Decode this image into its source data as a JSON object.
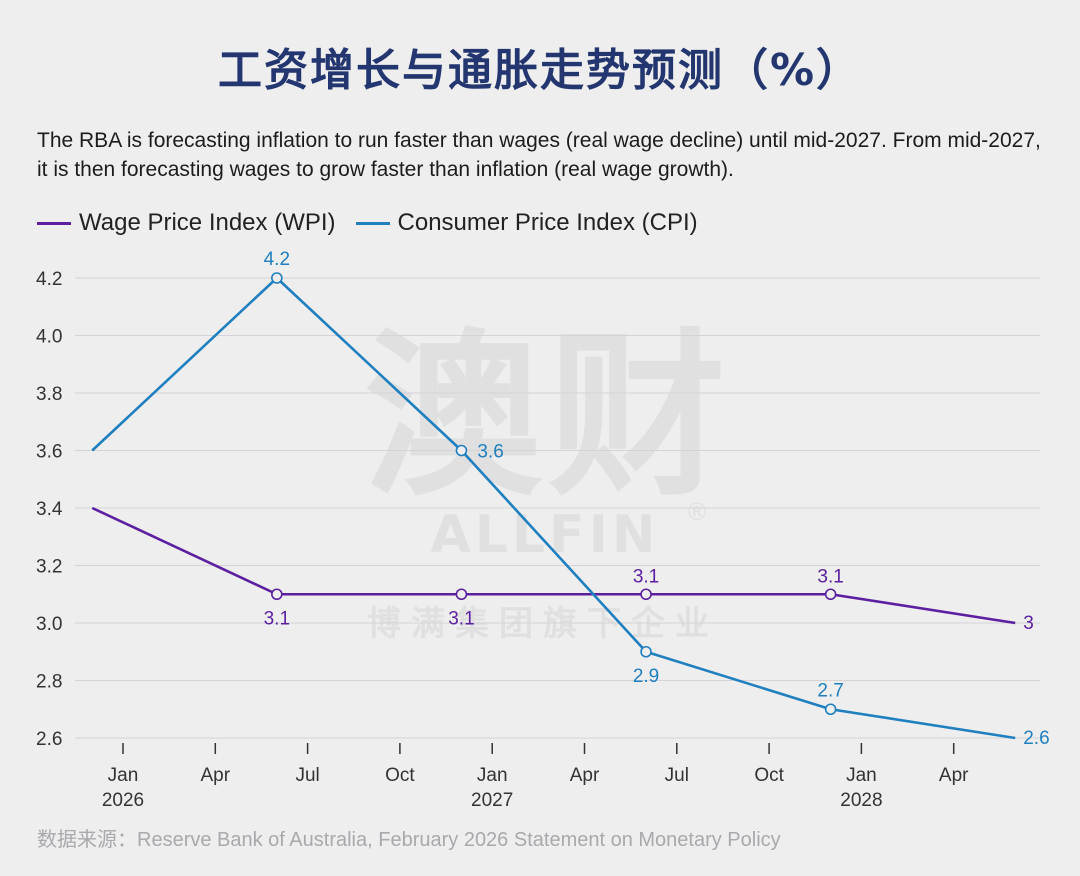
{
  "title": "工资增长与通胀走势预测（%）",
  "subtitle": "The RBA is forecasting inflation to run faster than wages (real wage decline) until mid-2027. From mid-2027, it is then forecasting wages to grow faster than inflation (real wage growth).",
  "source": "数据来源：Reserve Bank of Australia, February 2026 Statement on Monetary Policy",
  "watermark": {
    "main": "澳财",
    "brand": "ALLFIN",
    "registered": "®",
    "tagline": "博满集团旗下企业"
  },
  "colors": {
    "wpi": "#5b1fa0",
    "cpi": "#1f7fbf",
    "title": "#23366f"
  },
  "chart_data": {
    "type": "line",
    "y_ticks": [
      "2.6",
      "2.8",
      "3.0",
      "3.2",
      "3.4",
      "3.6",
      "3.8",
      "4.0",
      "4.2"
    ],
    "ylim": [
      2.55,
      4.3
    ],
    "x_ticks": [
      {
        "label": "Jan",
        "year": "2026"
      },
      {
        "label": "Apr",
        "year": ""
      },
      {
        "label": "Jul",
        "year": ""
      },
      {
        "label": "Oct",
        "year": ""
      },
      {
        "label": "Jan",
        "year": "2027"
      },
      {
        "label": "Apr",
        "year": ""
      },
      {
        "label": "Jul",
        "year": ""
      },
      {
        "label": "Oct",
        "year": ""
      },
      {
        "label": "Jan",
        "year": "2028"
      },
      {
        "label": "Apr",
        "year": ""
      }
    ],
    "x": [
      "Dec 2025",
      "Jun 2026",
      "Dec 2026",
      "Jun 2027",
      "Dec 2027",
      "Jun 2028"
    ],
    "series": [
      {
        "name": "Wage Price Index (WPI)",
        "key": "wpi",
        "values": [
          3.4,
          3.1,
          3.1,
          3.1,
          3.1,
          3.0
        ],
        "labels": [
          "",
          "3.1",
          "3.1",
          "3.1",
          "3.1",
          "3"
        ],
        "markers": [
          false,
          true,
          true,
          true,
          true,
          false
        ]
      },
      {
        "name": "Consumer Price Index (CPI)",
        "key": "cpi",
        "values": [
          3.6,
          4.2,
          3.6,
          2.9,
          2.7,
          2.6
        ],
        "labels": [
          "",
          "4.2",
          "3.6",
          "2.9",
          "2.7",
          "2.6"
        ],
        "markers": [
          false,
          true,
          true,
          true,
          true,
          false
        ]
      }
    ],
    "grid": true,
    "legend": "top-left"
  }
}
